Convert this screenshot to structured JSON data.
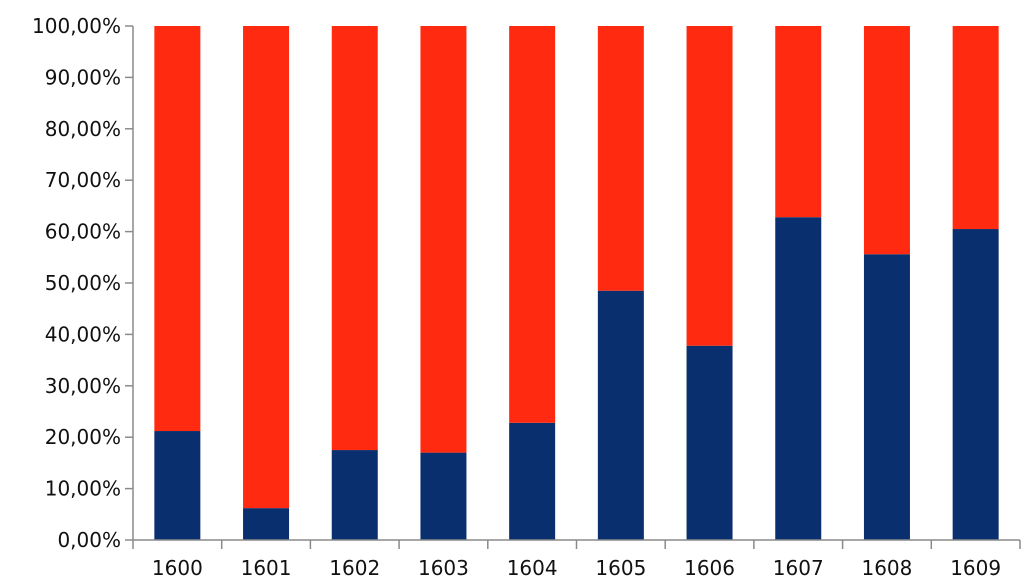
{
  "chart_data": {
    "type": "bar",
    "stacked": true,
    "categories": [
      "1600",
      "1601",
      "1602",
      "1603",
      "1604",
      "1605",
      "1606",
      "1607",
      "1608",
      "1609"
    ],
    "series": [
      {
        "color": "#0a2f6e",
        "values": [
          21.2,
          6.2,
          17.5,
          17.0,
          22.8,
          48.5,
          37.8,
          62.8,
          55.6,
          60.5
        ]
      },
      {
        "color": "#ff2a10",
        "values": [
          78.8,
          93.8,
          82.5,
          83.0,
          77.2,
          51.5,
          62.2,
          37.2,
          44.4,
          39.5
        ]
      }
    ],
    "ylim": [
      0,
      100
    ],
    "yticks": [
      0,
      10,
      20,
      30,
      40,
      50,
      60,
      70,
      80,
      90,
      100
    ],
    "ytick_labels": [
      "0,00%",
      "10,00%",
      "20,00%",
      "30,00%",
      "40,00%",
      "50,00%",
      "60,00%",
      "70,00%",
      "80,00%",
      "90,00%",
      "100,00%"
    ],
    "grid": false,
    "legend": "none"
  }
}
